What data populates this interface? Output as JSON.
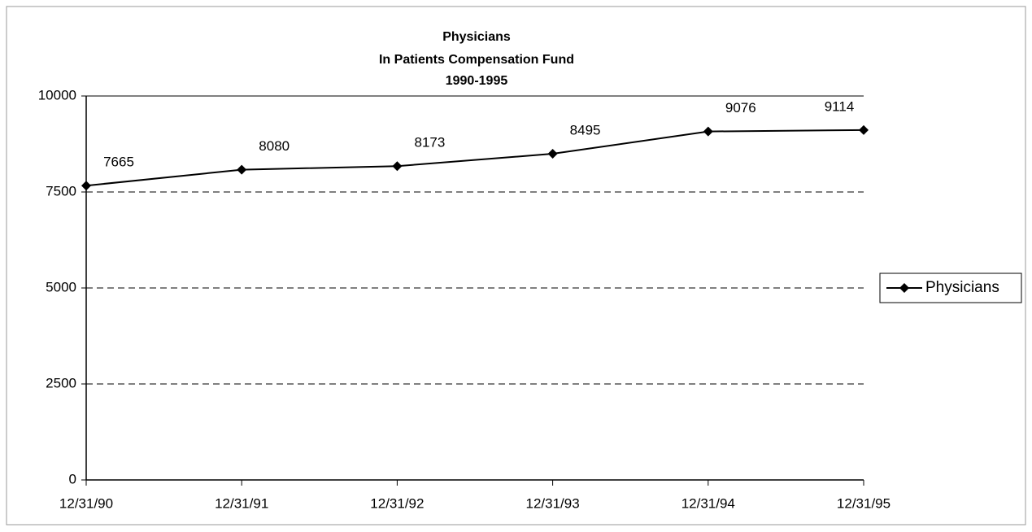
{
  "chart_data": {
    "type": "line",
    "title": [
      "Physicians",
      "In Patients Compensation Fund",
      "1990-1995"
    ],
    "categories": [
      "12/31/90",
      "12/31/91",
      "12/31/92",
      "12/31/93",
      "12/31/94",
      "12/31/95"
    ],
    "series": [
      {
        "name": "Physicians",
        "color": "#000000",
        "values": [
          7665,
          8080,
          8173,
          8495,
          9076,
          9114
        ]
      }
    ],
    "ylim": [
      0,
      10000
    ],
    "yticks": [
      0,
      2500,
      5000,
      7500,
      10000
    ],
    "grid": true,
    "legend": "right"
  }
}
